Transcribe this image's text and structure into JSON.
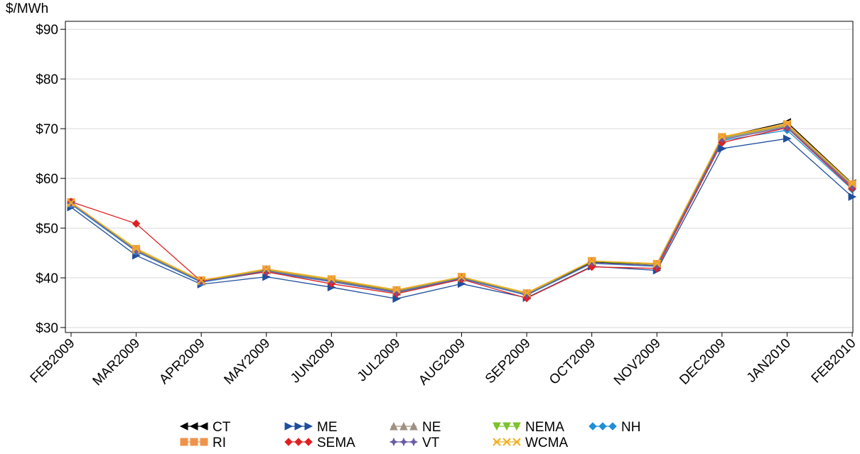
{
  "chart_data": {
    "type": "line",
    "y_label": "$/MWh",
    "categories": [
      "FEB2009",
      "MAR2009",
      "APR2009",
      "MAY2009",
      "JUN2009",
      "JUL2009",
      "AUG2009",
      "SEP2009",
      "OCT2009",
      "NOV2009",
      "DEC2009",
      "JAN2010",
      "FEB2010"
    ],
    "ylim": [
      29,
      91.6
    ],
    "yticks": [
      {
        "value": 30,
        "label": "$30"
      },
      {
        "value": 40,
        "label": "$40"
      },
      {
        "value": 50,
        "label": "$50"
      },
      {
        "value": 60,
        "label": "$60"
      },
      {
        "value": 70,
        "label": "$70"
      },
      {
        "value": 80,
        "label": "$80"
      },
      {
        "value": 90,
        "label": "$90"
      }
    ],
    "grid": true,
    "series": [
      {
        "name": "CT",
        "color": "#000000",
        "marker": "tri-left",
        "values": [
          55,
          45.5,
          39.3,
          41.5,
          39.5,
          37.3,
          40,
          36.5,
          43.2,
          42.5,
          68.3,
          71.3,
          59
        ]
      },
      {
        "name": "ME",
        "color": "#1f4e9c",
        "marker": "tri-right",
        "values": [
          54.2,
          44.5,
          38.7,
          40.2,
          38.1,
          35.8,
          38.8,
          36,
          42.3,
          41.5,
          66,
          68,
          56.3
        ]
      },
      {
        "name": "NE",
        "color": "#a09080",
        "marker": "tri-up",
        "values": [
          55,
          45.5,
          39.3,
          41.5,
          39.4,
          37.2,
          40,
          36.6,
          43,
          42.5,
          68,
          70.5,
          58.5
        ]
      },
      {
        "name": "NEMA",
        "color": "#7dc22c",
        "marker": "tri-down",
        "values": [
          55,
          45.7,
          39.4,
          41.6,
          39.6,
          37.4,
          40.1,
          36.8,
          43.3,
          42.7,
          68.2,
          70.7,
          58.7
        ]
      },
      {
        "name": "NH",
        "color": "#1f8fd6",
        "marker": "diamond",
        "values": [
          54.8,
          45.3,
          39.1,
          41.2,
          39.2,
          37,
          39.8,
          36.5,
          42.9,
          42.3,
          67.6,
          69.7,
          57.8
        ]
      },
      {
        "name": "RI",
        "color": "#f0934a",
        "marker": "square",
        "values": [
          55.2,
          45.8,
          39.5,
          41.7,
          39.7,
          37.5,
          40.2,
          36.9,
          43.4,
          42.8,
          68.3,
          70.8,
          58.8
        ]
      },
      {
        "name": "SEMA",
        "color": "#e02020",
        "marker": "diamond",
        "values": [
          55.3,
          50.9,
          39.3,
          41.2,
          38.8,
          36.8,
          39.7,
          35.9,
          42.2,
          41.9,
          67.2,
          70.2,
          58
        ]
      },
      {
        "name": "VT",
        "color": "#6a5aa8",
        "marker": "star",
        "values": [
          55,
          45.4,
          39.2,
          41.4,
          39.3,
          37.1,
          39.9,
          36.6,
          43,
          42.4,
          67.8,
          70.3,
          58.3
        ]
      },
      {
        "name": "WCMA",
        "color": "#f2b01e",
        "marker": "x",
        "values": [
          55.1,
          45.9,
          39.5,
          41.8,
          39.8,
          37.6,
          40.2,
          37,
          43.4,
          42.9,
          68.4,
          71,
          58.9
        ]
      }
    ]
  }
}
